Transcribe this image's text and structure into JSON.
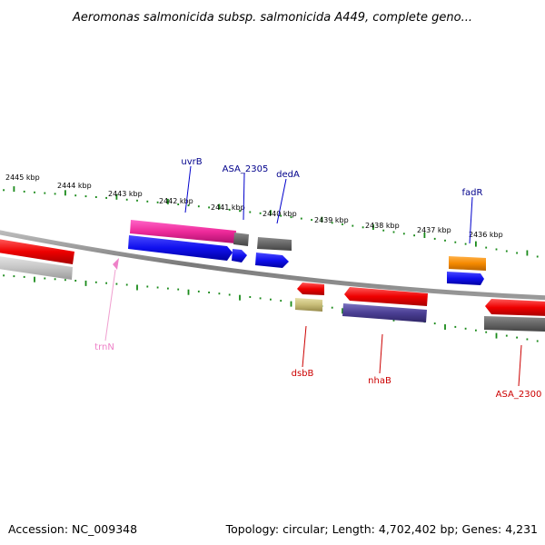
{
  "title": "Aeromonas salmonicida subsp. salmonicida A449, complete geno...",
  "footer": {
    "accession": "Accession: NC_009348",
    "topology": "Topology: circular; Length: 4,702,402 bp; Genes: 4,231"
  },
  "ruler": {
    "tick_labels": [
      "2445 kbp",
      "2444 kbp",
      "2443 kbp",
      "2442 kbp",
      "2441 kbp",
      "2440 kbp",
      "2439 kbp",
      "2438 kbp",
      "2437 kbp",
      "2436 kbp"
    ]
  },
  "gene_labels": [
    {
      "id": "uvrB",
      "text": "uvrB",
      "color": "#00008b"
    },
    {
      "id": "asa2305",
      "text": "ASA_2305",
      "color": "#00008b"
    },
    {
      "id": "deda",
      "text": "dedA",
      "color": "#00008b"
    },
    {
      "id": "fadr",
      "text": "fadR",
      "color": "#00008b"
    },
    {
      "id": "trnn",
      "text": "trnN",
      "color": "#ee82c8"
    },
    {
      "id": "dsbb",
      "text": "dsbB",
      "color": "#cc0000"
    },
    {
      "id": "nhab",
      "text": "nhaB",
      "color": "#cc0000"
    },
    {
      "id": "asa2300",
      "text": "ASA_2300",
      "color": "#cc0000"
    }
  ],
  "colors": {
    "backbone": "#808080",
    "tick": "#1a8a1a",
    "forward_label_line": "#0000cc",
    "reverse_label_line": "#cc0000",
    "trna_label_line": "#f0a0d0"
  }
}
